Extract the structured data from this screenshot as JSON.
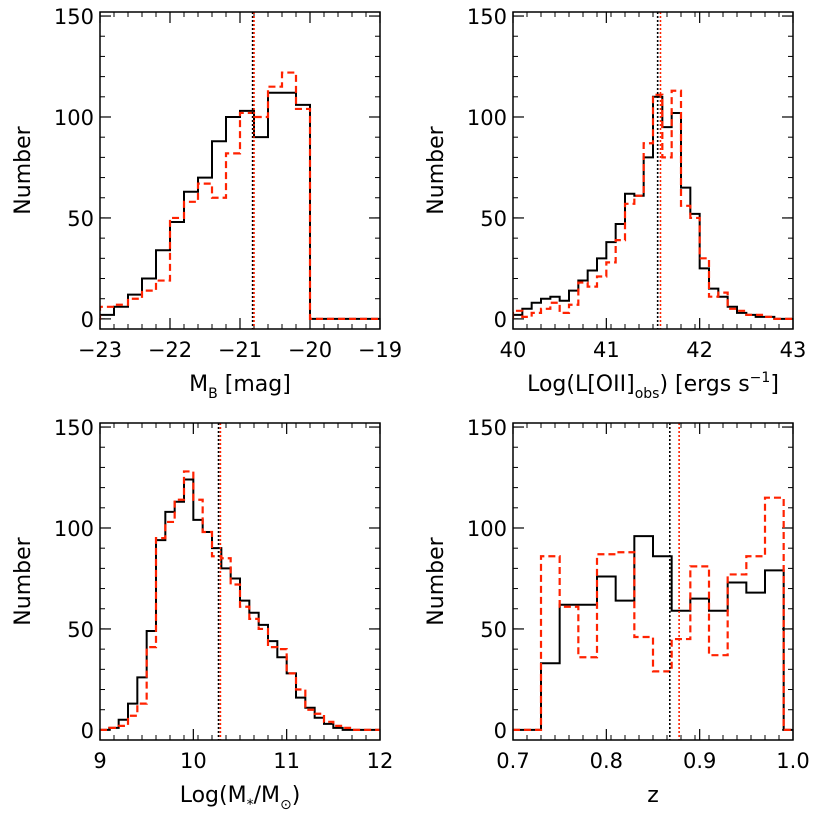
{
  "colors": {
    "black_series": "#000000",
    "red_series": "#ff2200"
  },
  "chart_data": [
    {
      "type": "histogram",
      "xlabel_parts": [
        "M",
        "B",
        " [mag]"
      ],
      "ylabel": "Number",
      "xlim": [
        -23,
        -19
      ],
      "ylim": [
        -5,
        152
      ],
      "xticks": [
        -23,
        -22,
        -21,
        -20,
        -19
      ],
      "xtick_labels": [
        "−23",
        "−22",
        "−21",
        "−20",
        "−19"
      ],
      "yticks": [
        0,
        50,
        100,
        150
      ],
      "ytick_labels": [
        "0",
        "50",
        "100",
        "150"
      ],
      "bin_edges": [
        -23.2,
        -23.0,
        -22.8,
        -22.6,
        -22.4,
        -22.2,
        -22.0,
        -21.8,
        -21.6,
        -21.4,
        -21.2,
        -21.0,
        -20.8,
        -20.6,
        -20.4,
        -20.2,
        -20.0,
        -19.8,
        -19.6,
        -19.4,
        -19.2,
        -19.0
      ],
      "series": [
        {
          "style": "solid",
          "color": "#000000",
          "values": [
            0,
            2,
            6,
            12,
            20,
            34,
            48,
            63,
            70,
            88,
            100,
            103,
            90,
            112,
            112,
            106,
            0,
            0,
            0,
            0,
            0
          ]
        },
        {
          "style": "dashed",
          "color": "#ff2200",
          "values": [
            0,
            6,
            7,
            10,
            14,
            19,
            50,
            58,
            67,
            60,
            82,
            102,
            100,
            115,
            122,
            104,
            0,
            0,
            0,
            0,
            0
          ]
        }
      ],
      "vlines": [
        {
          "x": -20.82,
          "color": "#000000",
          "style": "dotted"
        },
        {
          "x": -20.8,
          "color": "#ff2200",
          "style": "dotted"
        }
      ]
    },
    {
      "type": "histogram",
      "xlabel_parts": [
        "Log(L[OII]",
        "obs",
        ") [ergs s",
        "−1",
        "]"
      ],
      "ylabel": "Number",
      "xlim": [
        40,
        43
      ],
      "ylim": [
        -5,
        152
      ],
      "xticks": [
        40,
        41,
        42,
        43
      ],
      "xtick_labels": [
        "40",
        "41",
        "42",
        "43"
      ],
      "yticks": [
        0,
        50,
        100,
        150
      ],
      "ytick_labels": [
        "0",
        "50",
        "100",
        "150"
      ],
      "bin_edges": [
        40.0,
        40.1,
        40.2,
        40.3,
        40.4,
        40.5,
        40.6,
        40.7,
        40.8,
        40.9,
        41.0,
        41.1,
        41.2,
        41.3,
        41.4,
        41.5,
        41.6,
        41.7,
        41.8,
        41.9,
        42.0,
        42.1,
        42.2,
        42.3,
        42.4,
        42.5,
        42.6,
        42.7,
        42.8,
        42.9,
        43.0
      ],
      "series": [
        {
          "style": "solid",
          "color": "#000000",
          "values": [
            2,
            5,
            8,
            10,
            11,
            9,
            14,
            19,
            24,
            30,
            38,
            47,
            62,
            61,
            80,
            110,
            95,
            102,
            65,
            52,
            25,
            15,
            11,
            6,
            3,
            2,
            1,
            1,
            0,
            0
          ]
        },
        {
          "style": "dashed",
          "color": "#ff2200",
          "values": [
            4,
            1,
            3,
            5,
            8,
            3,
            7,
            18,
            16,
            21,
            28,
            39,
            57,
            61,
            87,
            111,
            80,
            113,
            56,
            50,
            30,
            11,
            13,
            5,
            4,
            2,
            2,
            1,
            0,
            0
          ]
        }
      ],
      "vlines": [
        {
          "x": 41.55,
          "color": "#000000",
          "style": "dotted"
        },
        {
          "x": 41.58,
          "color": "#ff2200",
          "style": "dotted"
        }
      ]
    },
    {
      "type": "histogram",
      "xlabel_parts": [
        "Log(M",
        "*",
        "/M",
        "⊙",
        ")"
      ],
      "ylabel": "Number",
      "xlim": [
        9,
        12
      ],
      "ylim": [
        -5,
        152
      ],
      "xticks": [
        9,
        10,
        11,
        12
      ],
      "xtick_labels": [
        "9",
        "10",
        "11",
        "12"
      ],
      "yticks": [
        0,
        50,
        100,
        150
      ],
      "ytick_labels": [
        "0",
        "50",
        "100",
        "150"
      ],
      "bin_edges": [
        9.0,
        9.1,
        9.2,
        9.3,
        9.4,
        9.5,
        9.6,
        9.7,
        9.8,
        9.9,
        10.0,
        10.1,
        10.2,
        10.3,
        10.4,
        10.5,
        10.6,
        10.7,
        10.8,
        10.9,
        11.0,
        11.1,
        11.2,
        11.3,
        11.4,
        11.5,
        11.6,
        11.7,
        11.8,
        11.9,
        12.0
      ],
      "series": [
        {
          "style": "solid",
          "color": "#000000",
          "values": [
            0,
            1,
            5,
            13,
            26,
            49,
            94,
            108,
            113,
            124,
            104,
            98,
            90,
            80,
            75,
            64,
            58,
            52,
            44,
            36,
            28,
            16,
            11,
            6,
            3,
            1,
            0,
            0,
            0,
            0
          ]
        },
        {
          "style": "dashed",
          "color": "#ff2200",
          "values": [
            0,
            1,
            2,
            7,
            13,
            41,
            95,
            103,
            114,
            128,
            114,
            98,
            86,
            85,
            72,
            61,
            55,
            50,
            41,
            40,
            28,
            20,
            10,
            8,
            4,
            2,
            1,
            0,
            0,
            0
          ]
        }
      ],
      "vlines": [
        {
          "x": 10.27,
          "color": "#000000",
          "style": "dotted"
        },
        {
          "x": 10.29,
          "color": "#ff2200",
          "style": "dotted"
        }
      ]
    },
    {
      "type": "histogram",
      "xlabel_parts": [
        "z"
      ],
      "ylabel": "Number",
      "xlim": [
        0.7,
        1.0
      ],
      "ylim": [
        -5,
        152
      ],
      "xticks": [
        0.7,
        0.8,
        0.9,
        1.0
      ],
      "xtick_labels": [
        "0.7",
        "0.8",
        "0.9",
        "1.0"
      ],
      "yticks": [
        0,
        50,
        100,
        150
      ],
      "ytick_labels": [
        "0",
        "50",
        "100",
        "150"
      ],
      "bin_edges": [
        0.7,
        0.73,
        0.75,
        0.77,
        0.79,
        0.81,
        0.83,
        0.85,
        0.87,
        0.89,
        0.91,
        0.93,
        0.95,
        0.97,
        0.99,
        1.0
      ],
      "series": [
        {
          "style": "solid",
          "color": "#000000",
          "values": [
            0,
            33,
            62,
            62,
            76,
            64,
            96,
            86,
            59,
            65,
            59,
            73,
            68,
            79,
            0
          ]
        },
        {
          "style": "dashed",
          "color": "#ff2200",
          "values": [
            0,
            86,
            61,
            36,
            87,
            88,
            46,
            29,
            45,
            81,
            37,
            77,
            86,
            115,
            0
          ]
        }
      ],
      "vlines": [
        {
          "x": 0.868,
          "color": "#000000",
          "style": "dotted"
        },
        {
          "x": 0.878,
          "color": "#ff2200",
          "style": "dotted"
        }
      ]
    }
  ]
}
